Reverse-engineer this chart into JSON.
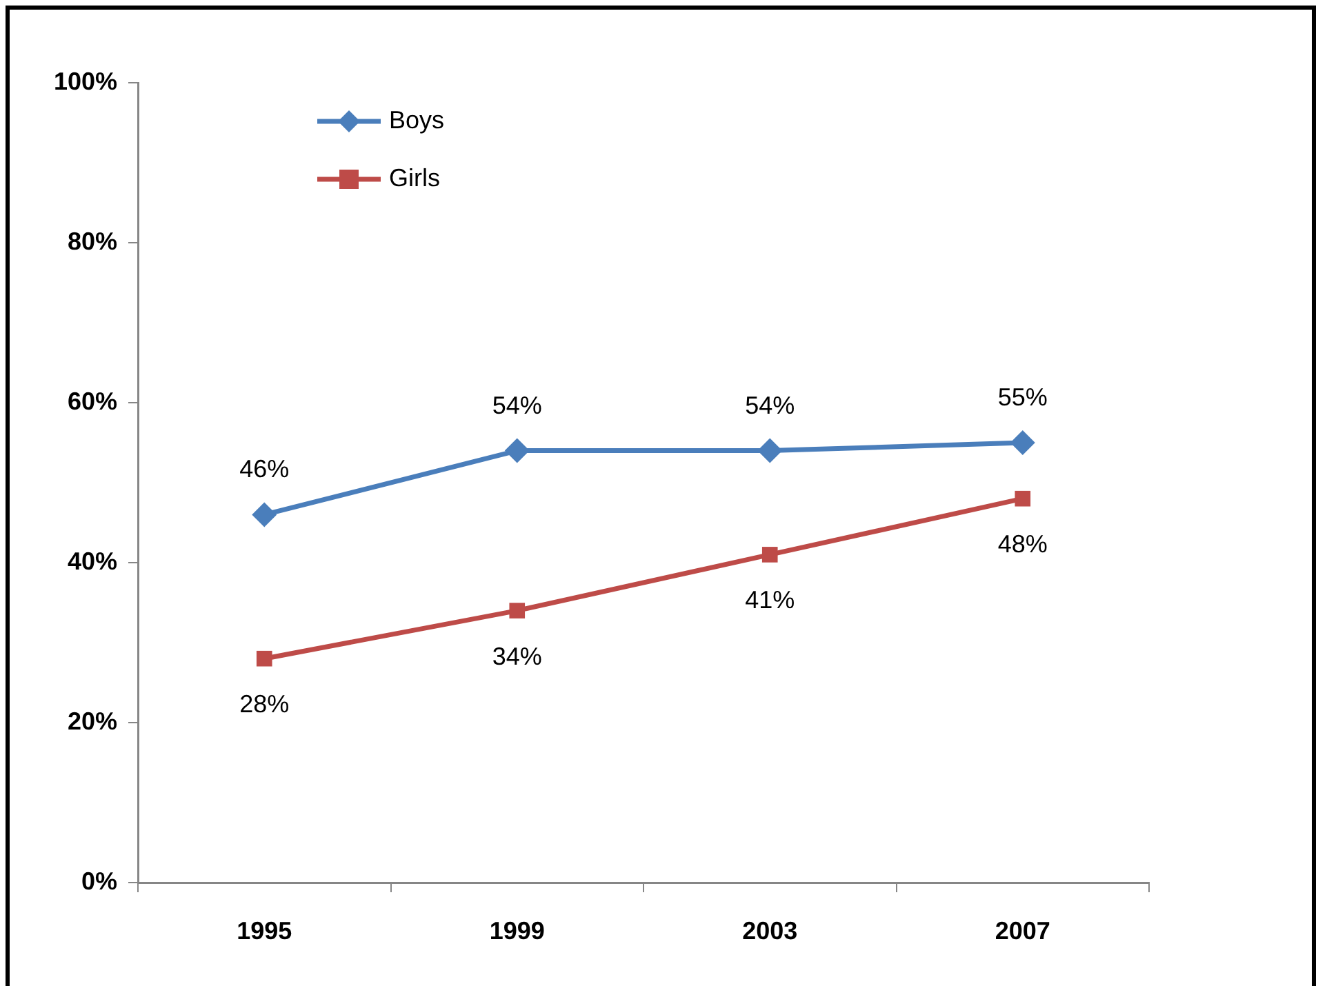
{
  "chart_data": {
    "type": "line",
    "categories": [
      "1995",
      "1999",
      "2003",
      "2007"
    ],
    "series": [
      {
        "name": "Boys",
        "color": "#4a7ebb",
        "marker": "diamond",
        "values": [
          46,
          54,
          54,
          55
        ],
        "value_labels": [
          "46%",
          "54%",
          "54%",
          "55%"
        ]
      },
      {
        "name": "Girls",
        "color": "#be4b48",
        "marker": "square",
        "values": [
          28,
          34,
          41,
          48
        ],
        "value_labels": [
          "28%",
          "34%",
          "41%",
          "48%"
        ]
      }
    ],
    "ylim": [
      0,
      100
    ],
    "yticks": [
      {
        "value": 0,
        "label": "0%"
      },
      {
        "value": 20,
        "label": "20%"
      },
      {
        "value": 40,
        "label": "40%"
      },
      {
        "value": 60,
        "label": "60%"
      },
      {
        "value": 80,
        "label": "80%"
      },
      {
        "value": 100,
        "label": "100%"
      }
    ],
    "grid": false,
    "legend": "top left",
    "line_style": "solid"
  }
}
